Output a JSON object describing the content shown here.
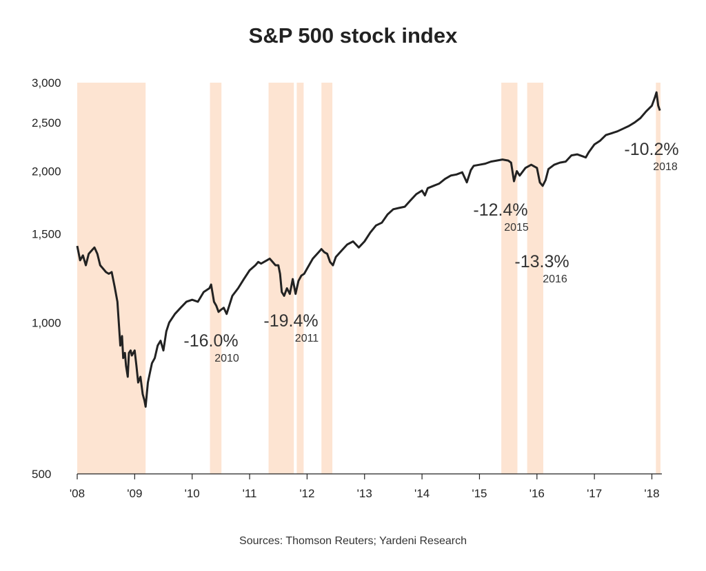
{
  "chart_data": {
    "type": "line",
    "title": "S&P 500 stock index",
    "source": "Sources: Thomson Reuters; Yardeni Research",
    "y_scale": "log",
    "ylim": [
      500,
      3000
    ],
    "xlim": [
      2008.0,
      2018.15
    ],
    "y_ticks": [
      {
        "value": 500,
        "label": "500"
      },
      {
        "value": 1000,
        "label": "1,000"
      },
      {
        "value": 1500,
        "label": "1,500"
      },
      {
        "value": 2000,
        "label": "2,000"
      },
      {
        "value": 2500,
        "label": "2,500"
      },
      {
        "value": 3000,
        "label": "3,000"
      }
    ],
    "x_ticks": [
      {
        "value": 2008,
        "label": "'08"
      },
      {
        "value": 2009,
        "label": "'09"
      },
      {
        "value": 2010,
        "label": "'10"
      },
      {
        "value": 2011,
        "label": "'11"
      },
      {
        "value": 2012,
        "label": "'12"
      },
      {
        "value": 2013,
        "label": "'13"
      },
      {
        "value": 2014,
        "label": "'14"
      },
      {
        "value": 2015,
        "label": "'15"
      },
      {
        "value": 2016,
        "label": "'16"
      },
      {
        "value": 2017,
        "label": "'17"
      },
      {
        "value": 2018,
        "label": "'18"
      }
    ],
    "shaded_periods": [
      [
        2008.0,
        2009.19
      ],
      [
        2010.31,
        2010.51
      ],
      [
        2011.33,
        2011.77
      ],
      [
        2011.82,
        2011.94
      ],
      [
        2012.25,
        2012.44
      ],
      [
        2015.38,
        2015.66
      ],
      [
        2015.83,
        2016.11
      ],
      [
        2018.07,
        2018.15
      ]
    ],
    "series": [
      {
        "x": [
          2008.0,
          2008.05,
          2008.1,
          2008.15,
          2008.2,
          2008.25,
          2008.3,
          2008.35,
          2008.4,
          2008.45,
          2008.5,
          2008.55,
          2008.6,
          2008.65,
          2008.7,
          2008.75,
          2008.78,
          2008.8,
          2008.83,
          2008.85,
          2008.88,
          2008.9,
          2008.93,
          2008.95,
          2009.0,
          2009.03,
          2009.06,
          2009.1,
          2009.14,
          2009.17,
          2009.19,
          2009.23,
          2009.27,
          2009.3,
          2009.35,
          2009.4,
          2009.45,
          2009.5,
          2009.55,
          2009.6,
          2009.7,
          2009.8,
          2009.9,
          2010.0,
          2010.1,
          2010.2,
          2010.3,
          2010.33,
          2010.38,
          2010.42,
          2010.46,
          2010.5,
          2010.55,
          2010.6,
          2010.7,
          2010.8,
          2010.9,
          2011.0,
          2011.1,
          2011.15,
          2011.2,
          2011.3,
          2011.35,
          2011.4,
          2011.45,
          2011.5,
          2011.53,
          2011.56,
          2011.6,
          2011.65,
          2011.7,
          2011.75,
          2011.8,
          2011.85,
          2011.9,
          2011.95,
          2012.0,
          2012.1,
          2012.2,
          2012.25,
          2012.3,
          2012.35,
          2012.4,
          2012.45,
          2012.5,
          2012.6,
          2012.7,
          2012.8,
          2012.9,
          2013.0,
          2013.1,
          2013.2,
          2013.3,
          2013.4,
          2013.5,
          2013.6,
          2013.7,
          2013.8,
          2013.9,
          2014.0,
          2014.05,
          2014.1,
          2014.2,
          2014.3,
          2014.4,
          2014.5,
          2014.6,
          2014.7,
          2014.78,
          2014.85,
          2014.9,
          2015.0,
          2015.1,
          2015.2,
          2015.3,
          2015.4,
          2015.5,
          2015.55,
          2015.6,
          2015.65,
          2015.7,
          2015.8,
          2015.9,
          2016.0,
          2016.05,
          2016.1,
          2016.15,
          2016.2,
          2016.3,
          2016.4,
          2016.5,
          2016.6,
          2016.7,
          2016.8,
          2016.85,
          2016.9,
          2017.0,
          2017.1,
          2017.2,
          2017.3,
          2017.4,
          2017.5,
          2017.6,
          2017.7,
          2017.8,
          2017.9,
          2018.0,
          2018.05,
          2018.08,
          2018.11,
          2018.14
        ],
        "y": [
          1420,
          1330,
          1360,
          1300,
          1370,
          1390,
          1410,
          1370,
          1300,
          1280,
          1260,
          1250,
          1260,
          1180,
          1100,
          900,
          940,
          850,
          870,
          820,
          780,
          870,
          880,
          860,
          880,
          820,
          760,
          780,
          720,
          700,
          680,
          760,
          800,
          830,
          850,
          900,
          920,
          880,
          960,
          1000,
          1040,
          1070,
          1100,
          1110,
          1100,
          1150,
          1170,
          1190,
          1100,
          1080,
          1050,
          1060,
          1070,
          1040,
          1130,
          1170,
          1220,
          1270,
          1300,
          1320,
          1310,
          1330,
          1340,
          1320,
          1300,
          1300,
          1250,
          1150,
          1130,
          1170,
          1140,
          1220,
          1140,
          1210,
          1240,
          1250,
          1280,
          1340,
          1380,
          1400,
          1380,
          1370,
          1320,
          1300,
          1350,
          1390,
          1430,
          1450,
          1410,
          1450,
          1510,
          1560,
          1580,
          1640,
          1680,
          1690,
          1700,
          1750,
          1800,
          1830,
          1790,
          1850,
          1870,
          1890,
          1930,
          1960,
          1970,
          1990,
          1900,
          2010,
          2050,
          2060,
          2070,
          2090,
          2100,
          2110,
          2100,
          2080,
          1910,
          2000,
          1960,
          2030,
          2060,
          2030,
          1900,
          1870,
          1920,
          2020,
          2060,
          2080,
          2090,
          2150,
          2160,
          2140,
          2130,
          2180,
          2260,
          2300,
          2360,
          2380,
          2400,
          2430,
          2460,
          2500,
          2550,
          2630,
          2700,
          2800,
          2870,
          2700,
          2640
        ]
      }
    ],
    "annotations": [
      {
        "pct": "-16.0%",
        "year": "2010"
      },
      {
        "pct": "-19.4%",
        "year": "2011"
      },
      {
        "pct": "-12.4%",
        "year": "2015"
      },
      {
        "pct": "-13.3%",
        "year": "2016"
      },
      {
        "pct": "-10.2%",
        "year": "2018"
      }
    ],
    "colors": {
      "line": "#222222",
      "shade": "#fde4d2",
      "axis": "#222222"
    }
  }
}
